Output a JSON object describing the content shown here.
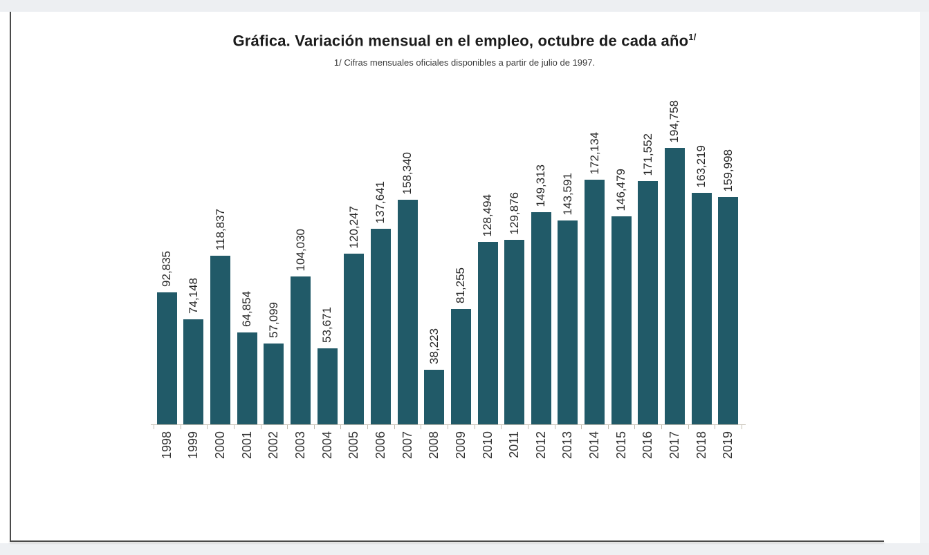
{
  "page": {
    "title": "Gráfica. Variación mensual en el empleo, octubre de cada año",
    "title_superscript": "1/",
    "subtitle": "1/ Cifras mensuales oficiales disponibles a partir de julio de 1997."
  },
  "chart_data": {
    "type": "bar",
    "title": "Gráfica. Variación mensual en el empleo, octubre de cada año 1/",
    "subtitle": "1/ Cifras mensuales oficiales disponibles a partir de julio de 1997.",
    "categories": [
      "1998",
      "1999",
      "2000",
      "2001",
      "2002",
      "2003",
      "2004",
      "2005",
      "2006",
      "2007",
      "2008",
      "2009",
      "2010",
      "2011",
      "2012",
      "2013",
      "2014",
      "2015",
      "2016",
      "2017",
      "2018",
      "2019"
    ],
    "values": [
      92835,
      74148,
      118837,
      64854,
      57099,
      104030,
      53671,
      120247,
      137641,
      158340,
      38223,
      81255,
      128494,
      129876,
      149313,
      143591,
      172134,
      146479,
      171552,
      194758,
      163219,
      159998
    ],
    "value_labels": [
      "92,835",
      "74,148",
      "118,837",
      "64,854",
      "57,099",
      "104,030",
      "53,671",
      "120,247",
      "137,641",
      "158,340",
      "38,223",
      "81,255",
      "128,494",
      "129,876",
      "149,313",
      "143,591",
      "172,134",
      "146,479",
      "171,552",
      "194,758",
      "163,219",
      "159,998"
    ],
    "xlabel": "",
    "ylabel": "",
    "ylim": [
      0,
      194758
    ],
    "grid": false,
    "legend": null,
    "bar_color": "#215a68",
    "value_labels_rotated": true,
    "category_labels_rotated": true
  }
}
